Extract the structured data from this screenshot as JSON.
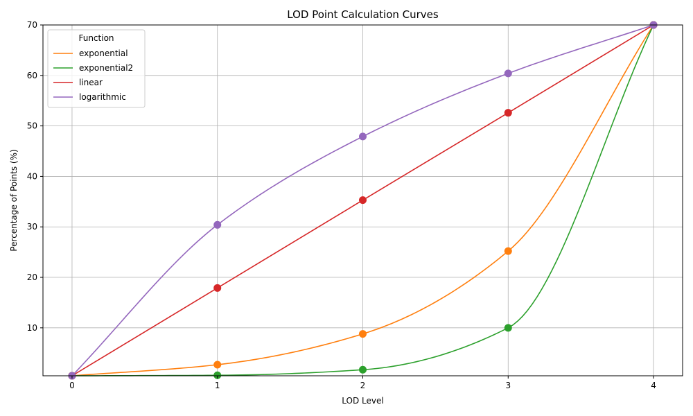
{
  "chart_data": {
    "type": "line",
    "title": "LOD Point Calculation Curves",
    "xlabel": "LOD Level",
    "ylabel": "Percentage of Points (%)",
    "x": [
      0,
      1,
      2,
      3,
      4
    ],
    "xticks": [
      "0",
      "1",
      "2",
      "3",
      "4"
    ],
    "yticks": [
      "10",
      "20",
      "30",
      "40",
      "50",
      "60",
      "70"
    ],
    "xlim": [
      -0.2,
      4.2
    ],
    "ylim": [
      0.5,
      70
    ],
    "grid": true,
    "legend": {
      "title": "Function",
      "placement": "top-left"
    },
    "series": [
      {
        "name": "exponential",
        "color": "#ff7f0e",
        "values": [
          0.5,
          2.7,
          8.8,
          25.2,
          70
        ]
      },
      {
        "name": "exponential2",
        "color": "#2ca02c",
        "values": [
          0.5,
          0.6,
          1.7,
          10.0,
          70
        ]
      },
      {
        "name": "linear",
        "color": "#d62728",
        "values": [
          0.5,
          17.9,
          35.3,
          52.6,
          70
        ]
      },
      {
        "name": "logarithmic",
        "color": "#9467bd",
        "values": [
          0.5,
          30.4,
          47.9,
          60.4,
          70
        ]
      }
    ]
  }
}
